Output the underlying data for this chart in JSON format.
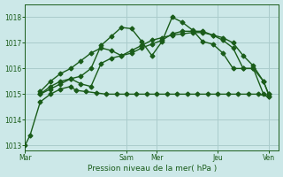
{
  "background_color": "#cce8e8",
  "grid_color": "#aacccc",
  "line_color": "#1a5c1a",
  "xlabel": "Pression niveau de la mer( hPa )",
  "ylim": [
    1012.8,
    1018.5
  ],
  "yticks": [
    1013,
    1014,
    1015,
    1016,
    1017,
    1018
  ],
  "xtick_labels": [
    "Mar",
    "Sam",
    "Mer",
    "Jeu",
    "Ven"
  ],
  "xtick_positions": [
    0,
    10,
    13,
    19,
    24
  ],
  "vline_positions": [
    0,
    10,
    13,
    19,
    24
  ],
  "xlim": [
    0,
    25
  ],
  "series": [
    {
      "x": [
        0,
        0.5,
        1.5,
        2.5,
        3.5,
        4.5,
        5,
        6,
        7,
        8,
        9,
        10,
        11,
        12,
        13,
        14,
        15,
        16,
        17,
        18,
        19,
        20,
        21,
        22,
        23,
        24
      ],
      "y": [
        1013.0,
        1013.4,
        1014.7,
        1015.0,
        1015.2,
        1015.3,
        1015.15,
        1015.1,
        1015.05,
        1015.0,
        1015.0,
        1015.0,
        1015.0,
        1015.0,
        1015.0,
        1015.0,
        1015.0,
        1015.0,
        1015.0,
        1015.0,
        1015.0,
        1015.0,
        1015.0,
        1015.0,
        1015.0,
        1014.9
      ]
    },
    {
      "x": [
        1.5,
        2.5,
        3.5,
        4.5,
        5.5,
        6.5,
        7.5,
        8.5,
        9.5,
        10.5,
        11.5,
        12.5,
        13.5,
        14.5,
        15.5,
        16.5,
        17.5,
        18.5,
        19.5,
        20.5,
        21.5,
        22.5,
        23.5,
        24
      ],
      "y": [
        1015.1,
        1015.5,
        1015.8,
        1016.0,
        1016.3,
        1016.6,
        1016.8,
        1016.7,
        1016.5,
        1016.7,
        1016.9,
        1017.1,
        1017.2,
        1017.3,
        1017.35,
        1017.4,
        1017.4,
        1017.3,
        1017.2,
        1017.0,
        1016.5,
        1016.1,
        1015.5,
        1015.0
      ]
    },
    {
      "x": [
        1.5,
        2.5,
        3.5,
        4.5,
        5.5,
        6.5,
        7.5,
        8.5,
        9.5,
        10.5,
        11.5,
        12.5,
        13.5,
        14.5,
        15.5,
        16.5,
        17.5,
        18.5,
        19.5,
        20.5,
        21.5,
        22.5,
        23.5,
        24
      ],
      "y": [
        1015.0,
        1015.3,
        1015.5,
        1015.6,
        1015.4,
        1015.3,
        1016.2,
        1016.4,
        1016.5,
        1016.6,
        1016.8,
        1016.95,
        1017.1,
        1017.35,
        1017.45,
        1017.45,
        1017.45,
        1017.3,
        1017.1,
        1016.8,
        1016.0,
        1016.0,
        1015.5,
        1015.0
      ]
    },
    {
      "x": [
        1.5,
        2.5,
        3.5,
        4.5,
        5.5,
        6.5,
        7.5,
        8.5,
        9.5,
        10.5,
        11.5,
        12.5,
        13.5,
        14.5,
        15.5,
        16.5,
        17.5,
        18.5,
        19.5,
        20.5,
        21.5,
        22.5,
        23.5,
        24
      ],
      "y": [
        1015.0,
        1015.2,
        1015.4,
        1015.6,
        1015.7,
        1016.0,
        1016.9,
        1017.25,
        1017.6,
        1017.55,
        1017.05,
        1016.5,
        1017.05,
        1018.0,
        1017.8,
        1017.5,
        1017.05,
        1016.95,
        1016.6,
        1016.0,
        1016.0,
        1016.0,
        1015.0,
        1014.9
      ]
    }
  ],
  "marker": "D",
  "markersize": 2.5,
  "linewidth": 1.0
}
